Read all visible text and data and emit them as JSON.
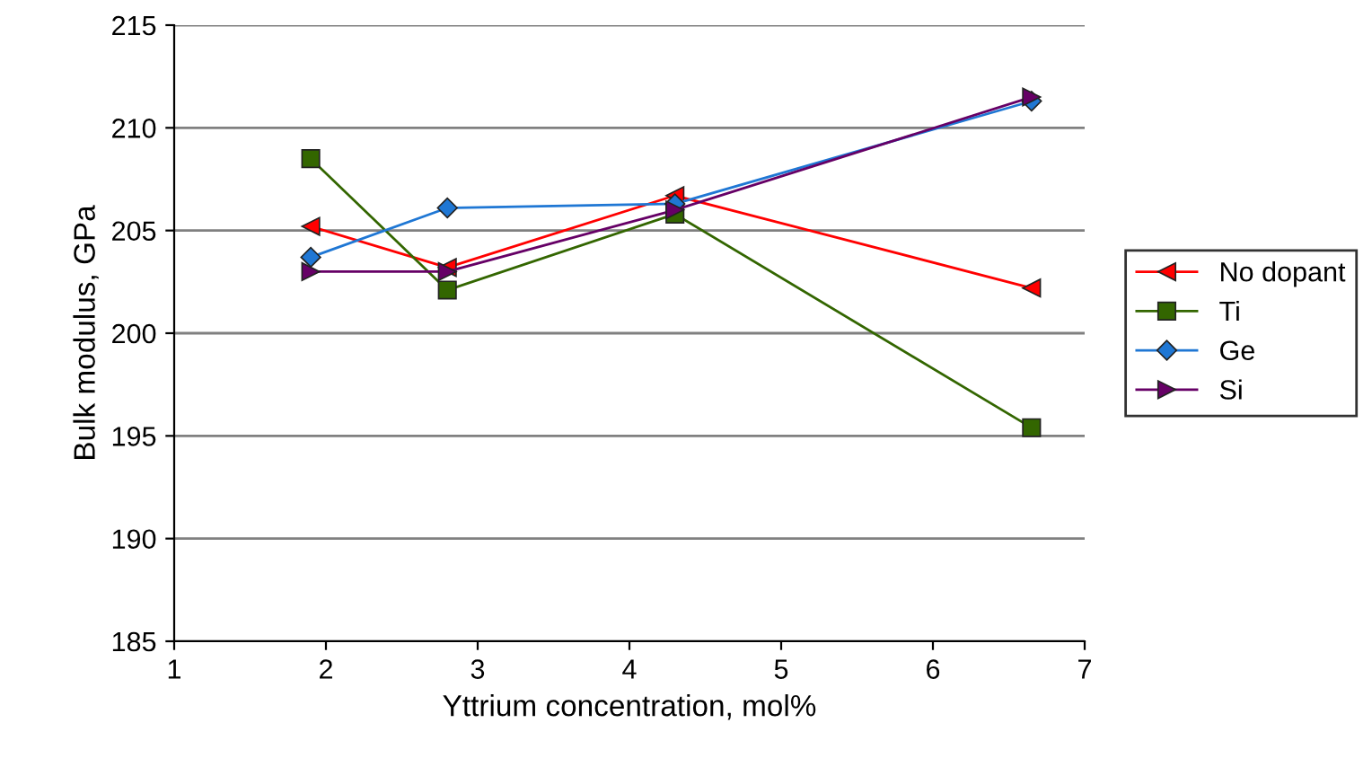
{
  "chart_data": {
    "type": "line",
    "xlabel": "Yttrium concentration, mol%",
    "ylabel": "Bulk modulus, GPa",
    "xlim": [
      1,
      7
    ],
    "xticks": [
      1,
      2,
      3,
      4,
      5,
      6,
      7
    ],
    "ylim": [
      185,
      215
    ],
    "yticks": [
      185,
      190,
      195,
      200,
      205,
      210,
      215
    ],
    "grid": "y",
    "legend": "right",
    "line_style": "solid",
    "series": [
      {
        "name": "No dopant",
        "color": "#ff0000",
        "marker": "triangle-left",
        "x": [
          1.9,
          2.8,
          4.3,
          6.65
        ],
        "values": [
          205.2,
          203.2,
          206.7,
          202.2
        ]
      },
      {
        "name": "Ti",
        "color": "#336600",
        "marker": "square",
        "x": [
          1.9,
          2.8,
          4.3,
          6.65
        ],
        "values": [
          208.5,
          202.1,
          205.8,
          195.4
        ]
      },
      {
        "name": "Ge",
        "color": "#1f77d4",
        "marker": "diamond",
        "x": [
          1.9,
          2.8,
          4.3,
          6.65
        ],
        "values": [
          203.7,
          206.1,
          206.3,
          211.3
        ]
      },
      {
        "name": "Si",
        "color": "#660066",
        "marker": "triangle-right",
        "x": [
          1.9,
          2.8,
          4.3,
          6.65
        ],
        "values": [
          203.0,
          203.0,
          206.0,
          211.5
        ]
      }
    ]
  }
}
